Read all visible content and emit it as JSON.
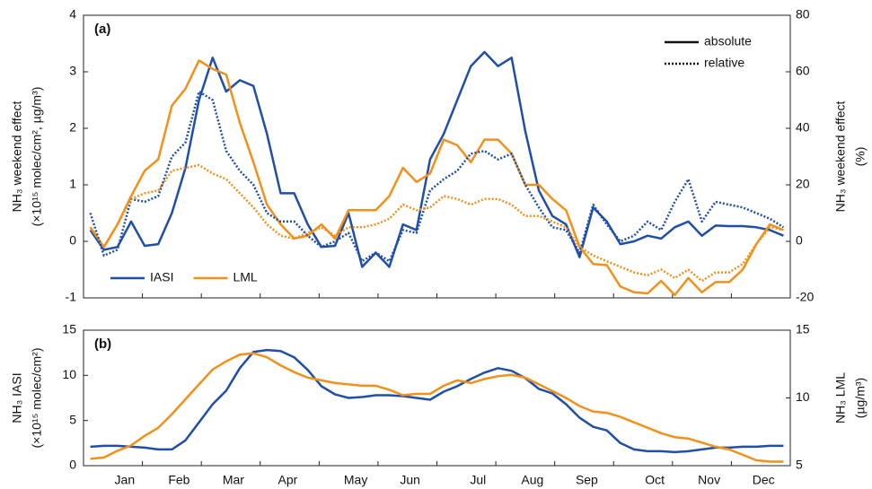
{
  "chart_data": [
    {
      "type": "line",
      "panel_label": "(a)",
      "ylabel": [
        "NH₃ weekend effect",
        "(×10¹⁵ molec/cm², µg/m³)"
      ],
      "y2label": [
        "NH₃ weekend effect",
        "(%)"
      ],
      "ylim": [
        -1,
        4
      ],
      "yticks": [
        -1,
        0,
        1,
        2,
        3,
        4
      ],
      "y2lim": [
        -20,
        80
      ],
      "y2ticks": [
        -20,
        0,
        20,
        40,
        60,
        80
      ],
      "legend": "lower left",
      "line_styles": [
        {
          "label": "absolute",
          "dash": "solid"
        },
        {
          "label": "relative",
          "dash": "dotted"
        }
      ],
      "line_styles_legend": "upper right",
      "series": [
        {
          "name": "IASI",
          "color": "#1f4fa8",
          "dash": "solid",
          "values": [
            0.2,
            -0.15,
            -0.1,
            0.35,
            -0.08,
            -0.05,
            0.5,
            1.3,
            2.5,
            3.25,
            2.65,
            2.85,
            2.75,
            1.9,
            0.85,
            0.85,
            0.3,
            -0.1,
            -0.08,
            0.5,
            -0.45,
            -0.2,
            -0.45,
            0.3,
            0.2,
            1.45,
            1.9,
            2.5,
            3.1,
            3.35,
            3.1,
            3.25,
            1.95,
            0.9,
            0.45,
            0.3,
            -0.28,
            0.6,
            0.35,
            -0.05,
            0.0,
            0.1,
            0.05,
            0.25,
            0.35,
            0.1,
            0.28,
            0.27,
            0.27,
            0.25,
            0.2,
            0.1
          ]
        },
        {
          "name": "LML",
          "color": "#f39019",
          "dash": "solid",
          "values": [
            0.25,
            -0.1,
            0.3,
            0.8,
            1.25,
            1.45,
            2.4,
            2.7,
            3.2,
            3.05,
            2.95,
            2.1,
            1.4,
            0.65,
            0.3,
            0.05,
            0.1,
            0.3,
            0.05,
            0.55,
            0.55,
            0.55,
            0.8,
            1.3,
            1.05,
            1.2,
            1.8,
            1.7,
            1.4,
            1.8,
            1.8,
            1.55,
            1.0,
            1.0,
            0.75,
            0.55,
            -0.1,
            -0.4,
            -0.42,
            -0.8,
            -0.9,
            -0.92,
            -0.7,
            -0.95,
            -0.65,
            -0.9,
            -0.72,
            -0.72,
            -0.5,
            -0.05,
            0.3,
            0.2
          ]
        },
        {
          "color": "#1f4fa8",
          "dash": "dotted",
          "axis": "y2",
          "values": [
            10,
            -5,
            -3,
            15,
            14,
            16,
            30,
            35,
            53,
            50,
            32,
            25,
            20,
            10,
            7,
            7,
            2,
            -2,
            0,
            3,
            -7,
            -4,
            -7,
            4,
            3,
            18,
            22,
            25,
            31,
            32,
            29,
            31,
            20,
            12,
            5,
            4,
            -4,
            13,
            6,
            0,
            2,
            7,
            4,
            14,
            22,
            7,
            14,
            13,
            12,
            10,
            8,
            5
          ]
        },
        {
          "color": "#f39019",
          "dash": "dotted",
          "axis": "y2",
          "values": [
            5,
            -2,
            6,
            15,
            17,
            18,
            25,
            26,
            27,
            24,
            22,
            17,
            12,
            6,
            2,
            1,
            3,
            5,
            2,
            5,
            5,
            6,
            8,
            13,
            11,
            12,
            16,
            15,
            13,
            15,
            15,
            13,
            9,
            9,
            7,
            5,
            -2,
            -5,
            -7,
            -9,
            -11,
            -12,
            -10,
            -13,
            -10,
            -14,
            -11,
            -11,
            -8,
            -1,
            5,
            4
          ]
        }
      ]
    },
    {
      "type": "line",
      "panel_label": "(b)",
      "ylabel": [
        "NH₃ IASI",
        "(×10¹⁵ molec/cm²)"
      ],
      "y2label": [
        "NH₃ LML",
        "(µg/m³)"
      ],
      "ylim": [
        0,
        15
      ],
      "yticks": [
        0,
        5,
        10,
        15
      ],
      "y2lim": [
        5,
        15
      ],
      "y2ticks": [
        5,
        10,
        15
      ],
      "categories": [
        null,
        null,
        "Jan",
        null,
        null,
        null,
        "Feb",
        null,
        null,
        null,
        "Mar",
        null,
        null,
        null,
        "Apr",
        null,
        null,
        null,
        null,
        "May",
        null,
        null,
        null,
        "Jun",
        null,
        null,
        null,
        null,
        "Jul",
        null,
        null,
        null,
        "Aug",
        null,
        null,
        null,
        "Sep",
        null,
        null,
        null,
        null,
        "Oct",
        null,
        null,
        null,
        "Nov",
        null,
        null,
        null,
        "Dec",
        null,
        null
      ],
      "series": [
        {
          "color": "#1f4fa8",
          "dash": "solid",
          "values": [
            2.1,
            2.2,
            2.2,
            2.1,
            2.0,
            1.8,
            1.8,
            2.8,
            4.8,
            6.8,
            8.3,
            10.8,
            12.6,
            12.8,
            12.7,
            12.0,
            10.6,
            8.8,
            7.9,
            7.5,
            7.6,
            7.8,
            7.8,
            7.7,
            7.5,
            7.3,
            8.2,
            8.8,
            9.6,
            10.3,
            10.8,
            10.5,
            9.7,
            8.5,
            8.0,
            6.8,
            5.3,
            4.3,
            3.9,
            2.5,
            1.8,
            1.6,
            1.6,
            1.5,
            1.6,
            1.8,
            2.0,
            2.0,
            2.1,
            2.1,
            2.2,
            2.2
          ]
        },
        {
          "color": "#f39019",
          "dash": "solid",
          "axis": "y2",
          "values": [
            5.5,
            5.6,
            6.1,
            6.5,
            7.2,
            7.8,
            8.8,
            9.9,
            11.0,
            12.1,
            12.7,
            13.2,
            13.3,
            13.0,
            12.4,
            11.9,
            11.5,
            11.3,
            11.1,
            11.0,
            10.9,
            10.9,
            10.6,
            10.2,
            10.3,
            10.3,
            10.9,
            11.3,
            11.1,
            11.4,
            11.6,
            11.7,
            11.5,
            11.0,
            10.5,
            10.0,
            9.4,
            9.0,
            8.9,
            8.6,
            8.2,
            7.8,
            7.4,
            7.1,
            7.0,
            6.7,
            6.4,
            6.2,
            5.8,
            5.4,
            5.3,
            5.3
          ]
        }
      ]
    }
  ]
}
